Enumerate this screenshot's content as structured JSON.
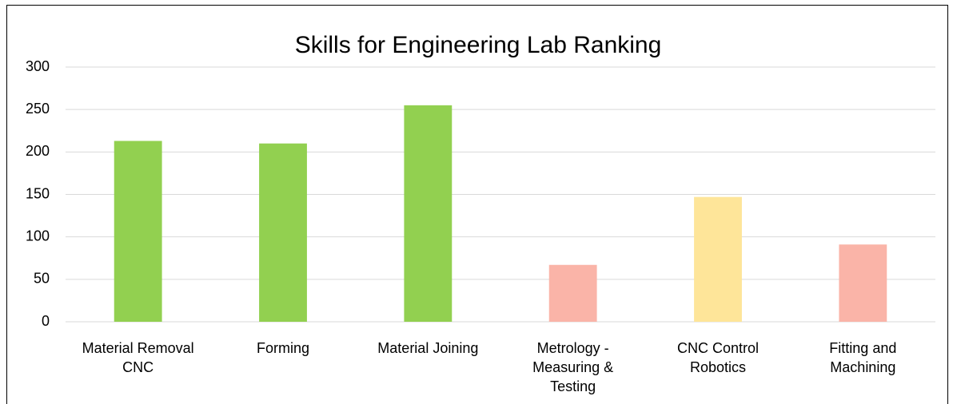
{
  "chart_data": {
    "type": "bar",
    "title": "Skills for Engineering Lab Ranking",
    "categories": [
      "Material Removal CNC",
      "Forming",
      "Material Joining",
      "Metrology - Measuring & Testing",
      "CNC Control Robotics",
      "Fitting and Machining"
    ],
    "values": [
      213,
      210,
      255,
      67,
      147,
      91
    ],
    "colors": [
      "#92d050",
      "#92d050",
      "#92d050",
      "#fab4a8",
      "#fee599",
      "#fab4a8"
    ],
    "ylim": [
      0,
      300
    ],
    "yticks": [
      0,
      50,
      100,
      150,
      200,
      250,
      300
    ],
    "grid": true
  }
}
